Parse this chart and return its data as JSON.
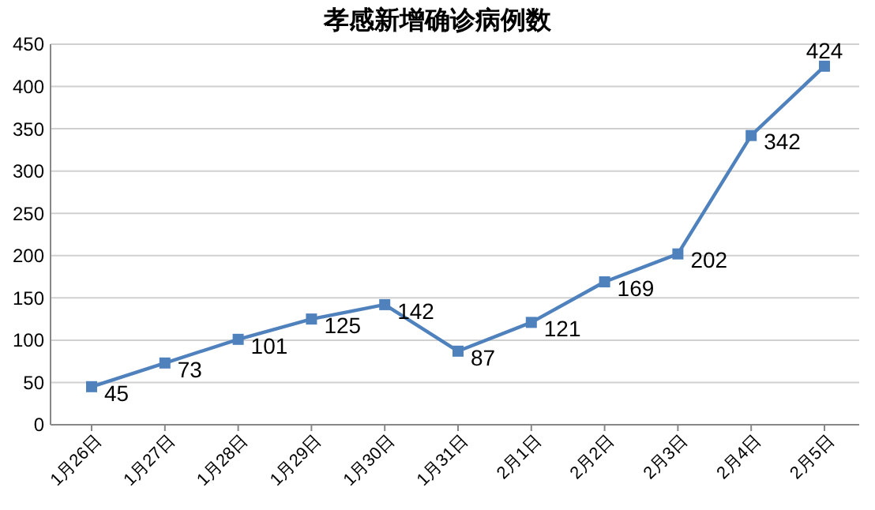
{
  "chart_data": {
    "type": "line",
    "title": "孝感新增确诊病例数",
    "categories": [
      "1月26日",
      "1月27日",
      "1月28日",
      "1月29日",
      "1月30日",
      "1月31日",
      "2月1日",
      "2月2日",
      "2月3日",
      "2月4日",
      "2月5日"
    ],
    "series": [
      {
        "color": "#4f81bd",
        "values": [
          45,
          73,
          101,
          125,
          142,
          87,
          121,
          169,
          202,
          342,
          424
        ]
      }
    ],
    "ylim": [
      0,
      450
    ],
    "yticks": [
      0,
      50,
      100,
      150,
      200,
      250,
      300,
      350,
      400,
      450
    ],
    "grid": "y",
    "marker": "square",
    "line_style": "solid",
    "data_labels": true
  }
}
